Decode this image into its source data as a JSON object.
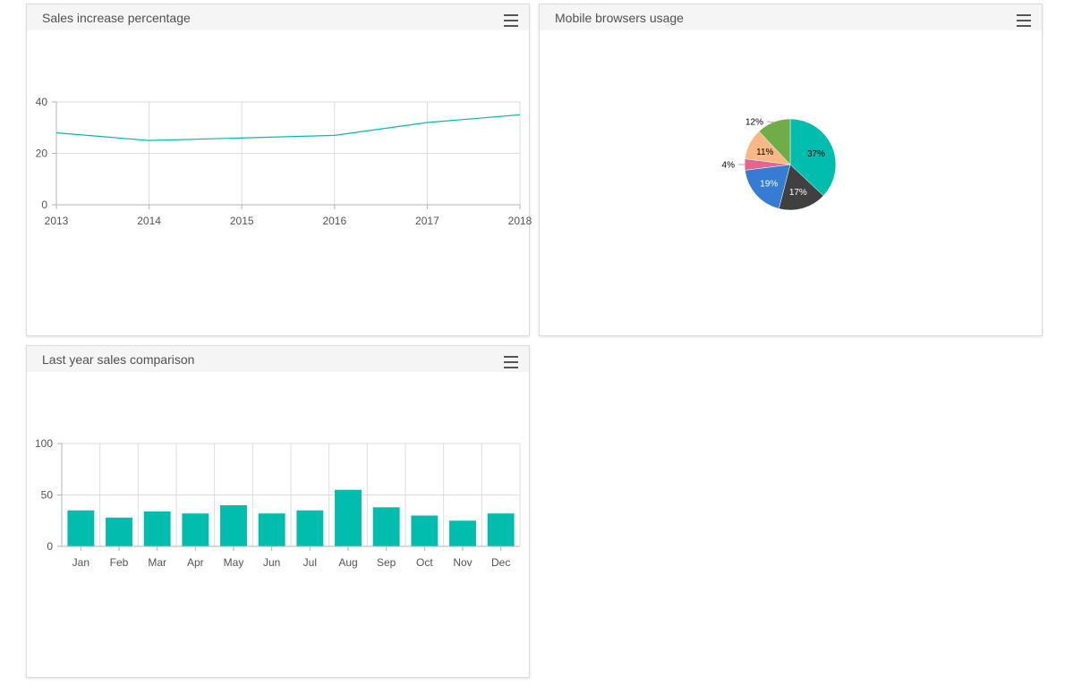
{
  "panels": {
    "line": {
      "title": "Sales increase percentage",
      "menu_icon": "hamburger-menu-icon"
    },
    "pie": {
      "title": "Mobile browsers usage",
      "menu_icon": "hamburger-menu-icon"
    },
    "bar": {
      "title": "Last year sales comparison",
      "menu_icon": "hamburger-menu-icon"
    }
  },
  "colors": {
    "accent": "#00bdae",
    "grid": "#dddddd",
    "axis": "#b5b5b5"
  },
  "chart_data": [
    {
      "type": "line",
      "title": "Sales increase percentage",
      "x": [
        "2013",
        "2014",
        "2015",
        "2016",
        "2017",
        "2018"
      ],
      "series": [
        {
          "values": [
            28,
            25,
            26,
            27,
            32,
            35
          ]
        }
      ],
      "yticks": [
        "0",
        "20",
        "40"
      ],
      "ylim": [
        0,
        40
      ],
      "grid": true
    },
    {
      "type": "pie",
      "title": "Mobile browsers usage",
      "slices": [
        {
          "value": 37,
          "label": "37%",
          "color": "#00bdae"
        },
        {
          "value": 17,
          "label": "17%",
          "color": "#404041"
        },
        {
          "value": 19,
          "label": "19%",
          "color": "#357cd2"
        },
        {
          "value": 4,
          "label": "4%",
          "color": "#e56590"
        },
        {
          "value": 11,
          "label": "11%",
          "color": "#f8b883"
        },
        {
          "value": 12,
          "label": "12%",
          "color": "#70ad47"
        }
      ]
    },
    {
      "type": "bar",
      "title": "Last year sales comparison",
      "categories": [
        "Jan",
        "Feb",
        "Mar",
        "Apr",
        "May",
        "Jun",
        "Jul",
        "Aug",
        "Sep",
        "Oct",
        "Nov",
        "Dec"
      ],
      "values": [
        35,
        28,
        34,
        32,
        40,
        32,
        35,
        55,
        38,
        30,
        25,
        32
      ],
      "yticks": [
        "0",
        "50",
        "100"
      ],
      "ylim": [
        0,
        100
      ],
      "grid": true
    }
  ]
}
